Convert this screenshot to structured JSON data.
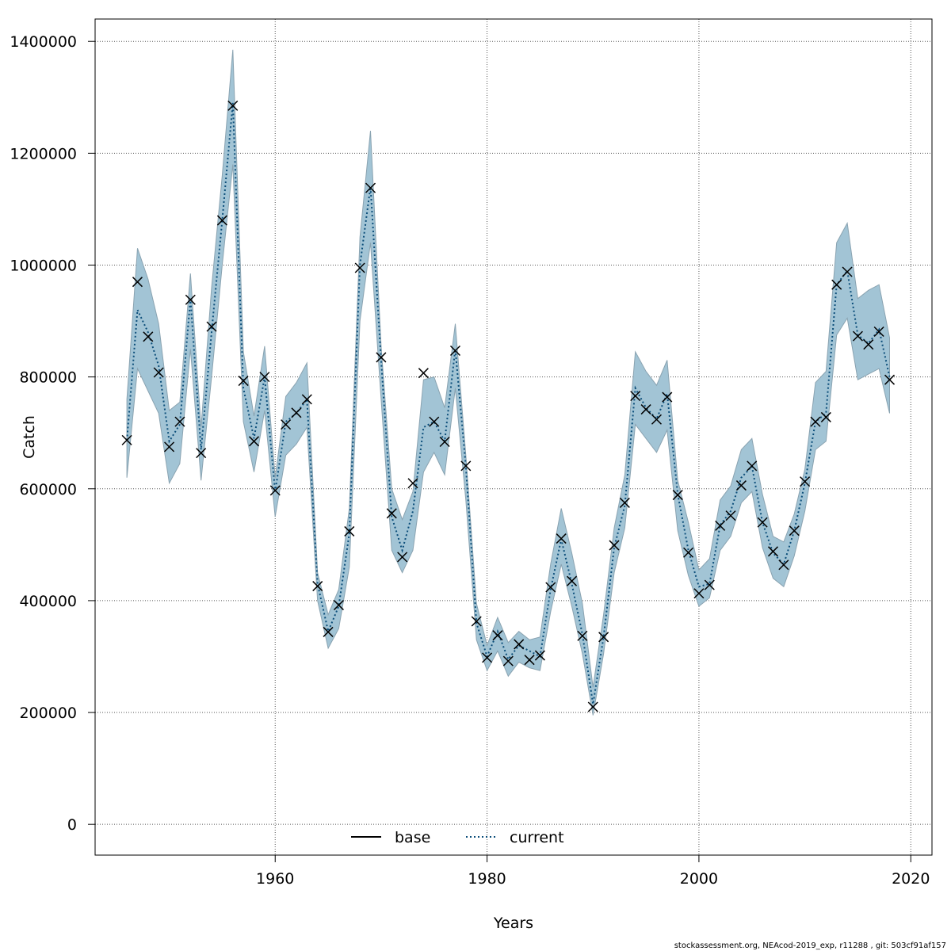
{
  "chart_data": {
    "type": "line",
    "title": "",
    "xlabel": "Years",
    "ylabel": "Catch",
    "xlim": [
      1943,
      2022
    ],
    "ylim": [
      -55000,
      1440000
    ],
    "x_ticks": [
      "1960",
      "1980",
      "2000",
      "2020"
    ],
    "y_ticks": [
      "0",
      "200000",
      "400000",
      "600000",
      "800000",
      "1000000",
      "1200000",
      "1400000"
    ],
    "grid": true,
    "legend_position": "bottom",
    "colors": {
      "band": "#a2c4d5",
      "band_edge": "#8aa3b1",
      "current_line": "#0c4e7a",
      "base_line": "#000000",
      "marker": "#000000",
      "grid": "#555555"
    },
    "x": [
      1946,
      1947,
      1948,
      1949,
      1950,
      1951,
      1952,
      1953,
      1954,
      1955,
      1956,
      1957,
      1958,
      1959,
      1960,
      1961,
      1962,
      1963,
      1964,
      1965,
      1966,
      1967,
      1968,
      1969,
      1970,
      1971,
      1972,
      1973,
      1974,
      1975,
      1976,
      1977,
      1978,
      1979,
      1980,
      1981,
      1982,
      1983,
      1984,
      1985,
      1986,
      1987,
      1988,
      1989,
      1990,
      1991,
      1992,
      1993,
      1994,
      1995,
      1996,
      1997,
      1998,
      1999,
      2000,
      2001,
      2002,
      2003,
      2004,
      2005,
      2006,
      2007,
      2008,
      2009,
      2010,
      2011,
      2012,
      2013,
      2014,
      2015,
      2016,
      2017,
      2018
    ],
    "series": [
      {
        "name": "current",
        "style": "dotted-line",
        "values": [
          687000,
          920000,
          880000,
          820000,
          685000,
          715000,
          940000,
          670000,
          880000,
          1080000,
          1290000,
          780000,
          690000,
          800000,
          595000,
          720000,
          735000,
          760000,
          430000,
          345000,
          390000,
          520000,
          1000000,
          1140000,
          830000,
          550000,
          490000,
          560000,
          710000,
          720000,
          685000,
          850000,
          640000,
          360000,
          300000,
          345000,
          295000,
          320000,
          310000,
          300000,
          420000,
          510000,
          430000,
          340000,
          215000,
          335000,
          495000,
          570000,
          780000,
          745000,
          725000,
          770000,
          590000,
          490000,
          425000,
          430000,
          535000,
          560000,
          620000,
          640000,
          540000,
          485000,
          465000,
          525000,
          610000,
          720000,
          735000,
          965000,
          990000,
          875000,
          860000,
          885000,
          800000
        ],
        "lower": [
          620000,
          815000,
          775000,
          735000,
          610000,
          645000,
          850000,
          615000,
          800000,
          1000000,
          1180000,
          720000,
          630000,
          740000,
          550000,
          660000,
          680000,
          710000,
          400000,
          315000,
          350000,
          460000,
          900000,
          1040000,
          760000,
          490000,
          450000,
          490000,
          630000,
          665000,
          625000,
          780000,
          580000,
          330000,
          275000,
          310000,
          265000,
          290000,
          280000,
          275000,
          380000,
          465000,
          390000,
          305000,
          195000,
          305000,
          450000,
          530000,
          715000,
          690000,
          665000,
          705000,
          525000,
          445000,
          390000,
          405000,
          490000,
          515000,
          575000,
          595000,
          495000,
          440000,
          425000,
          480000,
          560000,
          670000,
          685000,
          875000,
          905000,
          795000,
          805000,
          815000,
          735000
        ],
        "upper": [
          760000,
          1030000,
          975000,
          895000,
          740000,
          755000,
          985000,
          710000,
          960000,
          1160000,
          1385000,
          845000,
          730000,
          855000,
          620000,
          765000,
          790000,
          825000,
          450000,
          375000,
          420000,
          565000,
          1050000,
          1240000,
          855000,
          600000,
          545000,
          595000,
          795000,
          800000,
          745000,
          895000,
          660000,
          395000,
          320000,
          370000,
          325000,
          345000,
          330000,
          335000,
          465000,
          565000,
          485000,
          395000,
          245000,
          375000,
          530000,
          625000,
          845000,
          810000,
          785000,
          830000,
          615000,
          540000,
          455000,
          475000,
          580000,
          605000,
          670000,
          690000,
          590000,
          515000,
          505000,
          555000,
          635000,
          790000,
          810000,
          1040000,
          1075000,
          940000,
          955000,
          965000,
          870000
        ]
      },
      {
        "name": "base",
        "style": "markers",
        "values": [
          687000,
          970000,
          872000,
          808000,
          675000,
          720000,
          938000,
          664000,
          890000,
          1080000,
          1285000,
          793000,
          685000,
          800000,
          597000,
          715000,
          736000,
          760000,
          426000,
          344000,
          392000,
          524000,
          995000,
          1138000,
          835000,
          556000,
          478000,
          610000,
          807000,
          720000,
          684000,
          847000,
          641000,
          363000,
          298000,
          338000,
          292000,
          322000,
          294000,
          302000,
          424000,
          511000,
          435000,
          337000,
          210000,
          335000,
          499000,
          575000,
          766000,
          742000,
          724000,
          764000,
          589000,
          486000,
          413000,
          428000,
          534000,
          552000,
          606000,
          641000,
          540000,
          488000,
          464000,
          525000,
          613000,
          720000,
          728000,
          965000,
          988000,
          873000,
          858000,
          881000,
          795000
        ]
      }
    ]
  },
  "legend": [
    {
      "label": "base",
      "style": "solid"
    },
    {
      "label": "current",
      "style": "dotted"
    }
  ],
  "footer": "stockassessment.org, NEAcod-2019_exp, r11288 , git: 503cf91af157"
}
